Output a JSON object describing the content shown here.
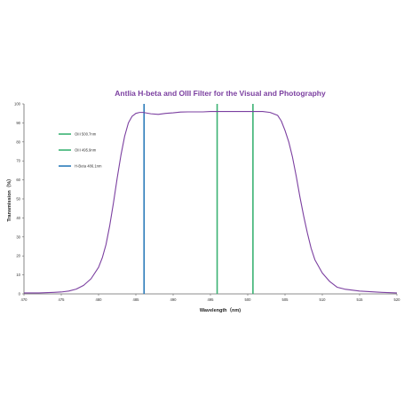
{
  "chart_data": {
    "type": "line",
    "title": "Antlia H-beta and OIII Filter for the Visual and Photography",
    "xlabel": "Wavelength（nm)",
    "ylabel": "Transmission（%）",
    "xlim": [
      470,
      520
    ],
    "ylim": [
      0,
      100
    ],
    "x_ticks": [
      470,
      475,
      480,
      485,
      490,
      495,
      500,
      505,
      510,
      515,
      520
    ],
    "y_ticks": [
      0,
      10,
      20,
      30,
      40,
      50,
      60,
      70,
      80,
      90,
      100
    ],
    "grid": false,
    "legend_position": "upper-left",
    "series": [
      {
        "color": "#7b3fa0",
        "x": [
          470,
          472,
          474,
          475,
          476,
          477,
          478,
          479,
          480,
          480.5,
          481,
          481.5,
          482,
          482.5,
          483,
          483.5,
          484,
          484.5,
          485,
          485.5,
          486,
          487,
          488,
          489,
          490,
          491,
          492,
          493,
          494,
          495,
          496,
          497,
          498,
          499,
          500,
          501,
          502,
          503,
          504,
          504.5,
          505,
          505.5,
          506,
          506.5,
          507,
          507.5,
          508,
          508.5,
          509,
          510,
          511,
          512,
          513,
          515,
          518,
          520
        ],
        "y": [
          0.5,
          0.5,
          0.8,
          1,
          1.5,
          2.5,
          4.5,
          8,
          14,
          19,
          26,
          36,
          48,
          61,
          73,
          83,
          90,
          93.5,
          95,
          95.5,
          95.5,
          94.8,
          94.5,
          95,
          95.3,
          95.7,
          95.8,
          95.8,
          95.8,
          96,
          96,
          96,
          96,
          96,
          96,
          96,
          96,
          95.5,
          94,
          91,
          86,
          80,
          72,
          62,
          51,
          41,
          32,
          24,
          18,
          11,
          6.5,
          3.5,
          2.5,
          1.5,
          0.8,
          0.5
        ]
      }
    ],
    "markers": [
      {
        "label": "OIII 500.7nm",
        "x": 500.7,
        "color": "#3bb273"
      },
      {
        "label": "OIII 495.9nm",
        "x": 495.9,
        "color": "#3bb273"
      },
      {
        "label": "H-Beta 486.1nm",
        "x": 486.1,
        "color": "#2b7bb9"
      }
    ]
  },
  "colors": {
    "title": "#7b3fa0",
    "curve": "#7b3fa0",
    "axis": "#666666"
  }
}
